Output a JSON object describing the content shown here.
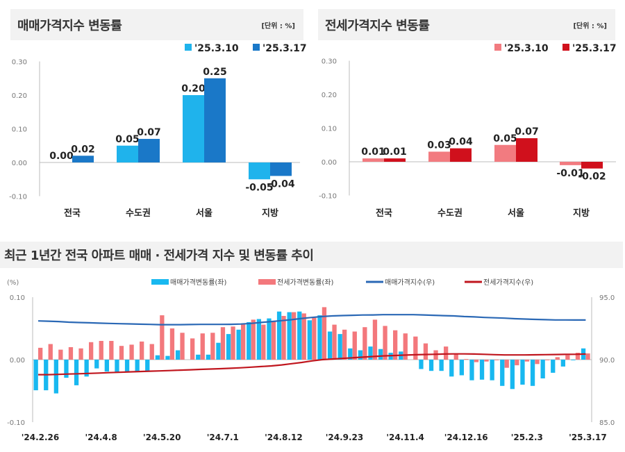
{
  "panels": {
    "sale": {
      "title": "매매가격지수 변동률",
      "unit": "[단위 : %]"
    },
    "jeonse": {
      "title": "전세가격지수 변동률",
      "unit": "[단위 : %]"
    },
    "trend": {
      "title": "최근 1년간 전국 아파트 매매 · 전세가격 지수 및 변동률 추이"
    }
  },
  "colors": {
    "sale_prev": "#1fb3ec",
    "sale_curr": "#1a78c8",
    "jeonse_prev": "#f27b80",
    "jeonse_curr": "#d0101c",
    "sale_change": "#18b8f0",
    "jeonse_change": "#f3787c",
    "sale_index": "#2a68b5",
    "jeonse_index": "#c0161e"
  },
  "chart_data": [
    {
      "type": "bar",
      "categories": [
        "전국",
        "수도권",
        "서울",
        "지방"
      ],
      "series": [
        {
          "name": "'25.3.10",
          "values": [
            0.0,
            0.05,
            0.2,
            -0.05
          ],
          "labels": [
            "0.00",
            "0.05",
            "0.20",
            "-0.05"
          ]
        },
        {
          "name": "'25.3.17",
          "values": [
            0.02,
            0.07,
            0.25,
            -0.04
          ],
          "labels": [
            "0.02",
            "0.07",
            "0.25",
            "-0.04"
          ]
        }
      ],
      "ylim": [
        -0.1,
        0.3
      ],
      "yticks": [
        "0.30",
        "0.20",
        "0.10",
        "0.00",
        "-0.10"
      ],
      "legend": "top-right",
      "grid": false
    },
    {
      "type": "bar",
      "categories": [
        "전국",
        "수도권",
        "서울",
        "지방"
      ],
      "series": [
        {
          "name": "'25.3.10",
          "values": [
            0.01,
            0.03,
            0.05,
            -0.01
          ],
          "labels": [
            "0.01",
            "0.03",
            "0.05",
            "-0.01"
          ]
        },
        {
          "name": "'25.3.17",
          "values": [
            0.01,
            0.04,
            0.07,
            -0.02
          ],
          "labels": [
            "0.01",
            "0.04",
            "0.07",
            "-0.02"
          ]
        }
      ],
      "ylim": [
        -0.1,
        0.3
      ],
      "yticks": [
        "0.30",
        "0.20",
        "0.10",
        "0.00",
        "-0.10"
      ],
      "legend": "top-right",
      "grid": false
    },
    {
      "type": "bar+line",
      "ylabel_left": "(%)",
      "ylim_left": [
        -0.1,
        0.1
      ],
      "yticks_left": [
        "0.10",
        "0.00",
        "-0.10"
      ],
      "ylim_right": [
        85.0,
        95.0
      ],
      "yticks_right": [
        "95.0",
        "90.0",
        "85.0"
      ],
      "x_tick_labels": [
        "'24.2.26",
        "'24.4.8",
        "'24.5.20",
        "'24.7.1",
        "'24.8.12",
        "'24.9.23",
        "'24.11.4",
        "'24.12.16",
        "'25.2.3",
        "'25.3.17"
      ],
      "legend": "top",
      "series": [
        {
          "name": "매매가격변동률(좌)",
          "kind": "bar",
          "axis": "left",
          "values": [
            -0.049,
            -0.049,
            -0.054,
            -0.029,
            -0.041,
            -0.027,
            -0.014,
            -0.019,
            -0.02,
            -0.02,
            -0.019,
            -0.018,
            0.007,
            0.006,
            0.015,
            0.0,
            0.008,
            0.008,
            0.027,
            0.041,
            0.048,
            0.06,
            0.065,
            0.066,
            0.077,
            0.076,
            0.077,
            0.063,
            0.071,
            0.045,
            0.041,
            0.018,
            0.015,
            0.021,
            0.017,
            0.011,
            0.013,
            0.0,
            -0.015,
            -0.018,
            -0.018,
            -0.027,
            -0.025,
            -0.033,
            -0.032,
            -0.033,
            -0.042,
            -0.047,
            -0.04,
            -0.042,
            -0.03,
            -0.021,
            -0.011,
            -0.001,
            0.018
          ]
        },
        {
          "name": "전세가격변동률(좌)",
          "kind": "bar",
          "axis": "left",
          "values": [
            0.019,
            0.025,
            0.016,
            0.02,
            0.018,
            0.028,
            0.03,
            0.03,
            0.022,
            0.024,
            0.029,
            0.025,
            0.071,
            0.05,
            0.043,
            0.034,
            0.042,
            0.043,
            0.052,
            0.053,
            0.057,
            0.064,
            0.056,
            0.062,
            0.07,
            0.076,
            0.074,
            0.067,
            0.084,
            0.056,
            0.048,
            0.045,
            0.052,
            0.064,
            0.054,
            0.047,
            0.042,
            0.037,
            0.026,
            0.015,
            0.021,
            0.009,
            0.001,
            -0.004,
            -0.003,
            -0.001,
            -0.013,
            -0.009,
            -0.003,
            -0.007,
            -0.001,
            0.004,
            0.007,
            0.011,
            0.01
          ]
        },
        {
          "name": "매매가격지수(우)",
          "kind": "line",
          "axis": "right",
          "values": [
            93.1,
            93.08,
            93.05,
            93.0,
            92.97,
            92.95,
            92.92,
            92.9,
            92.88,
            92.86,
            92.84,
            92.82,
            92.8,
            92.8,
            92.8,
            92.81,
            92.82,
            92.82,
            92.82,
            92.83,
            92.85,
            92.9,
            92.98,
            93.05,
            93.12,
            93.2,
            93.3,
            93.38,
            93.45,
            93.5,
            93.53,
            93.55,
            93.57,
            93.58,
            93.6,
            93.6,
            93.6,
            93.6,
            93.58,
            93.55,
            93.52,
            93.5,
            93.45,
            93.42,
            93.38,
            93.35,
            93.32,
            93.28,
            93.25,
            93.22,
            93.2,
            93.18,
            93.18,
            93.17,
            93.17
          ]
        },
        {
          "name": "전세가격지수(우)",
          "kind": "line",
          "axis": "right",
          "values": [
            88.8,
            88.8,
            88.82,
            88.85,
            88.87,
            88.9,
            88.93,
            88.96,
            88.99,
            89.02,
            89.05,
            89.08,
            89.1,
            89.13,
            89.16,
            89.19,
            89.22,
            89.25,
            89.28,
            89.31,
            89.35,
            89.4,
            89.45,
            89.5,
            89.58,
            89.68,
            89.78,
            89.9,
            90.0,
            90.05,
            90.1,
            90.15,
            90.2,
            90.25,
            90.3,
            90.33,
            90.36,
            90.39,
            90.41,
            90.43,
            90.45,
            90.46,
            90.46,
            90.45,
            90.43,
            90.4,
            90.38,
            90.38,
            90.38,
            90.39,
            90.4,
            90.41,
            90.42,
            90.43,
            90.45
          ]
        }
      ]
    }
  ]
}
